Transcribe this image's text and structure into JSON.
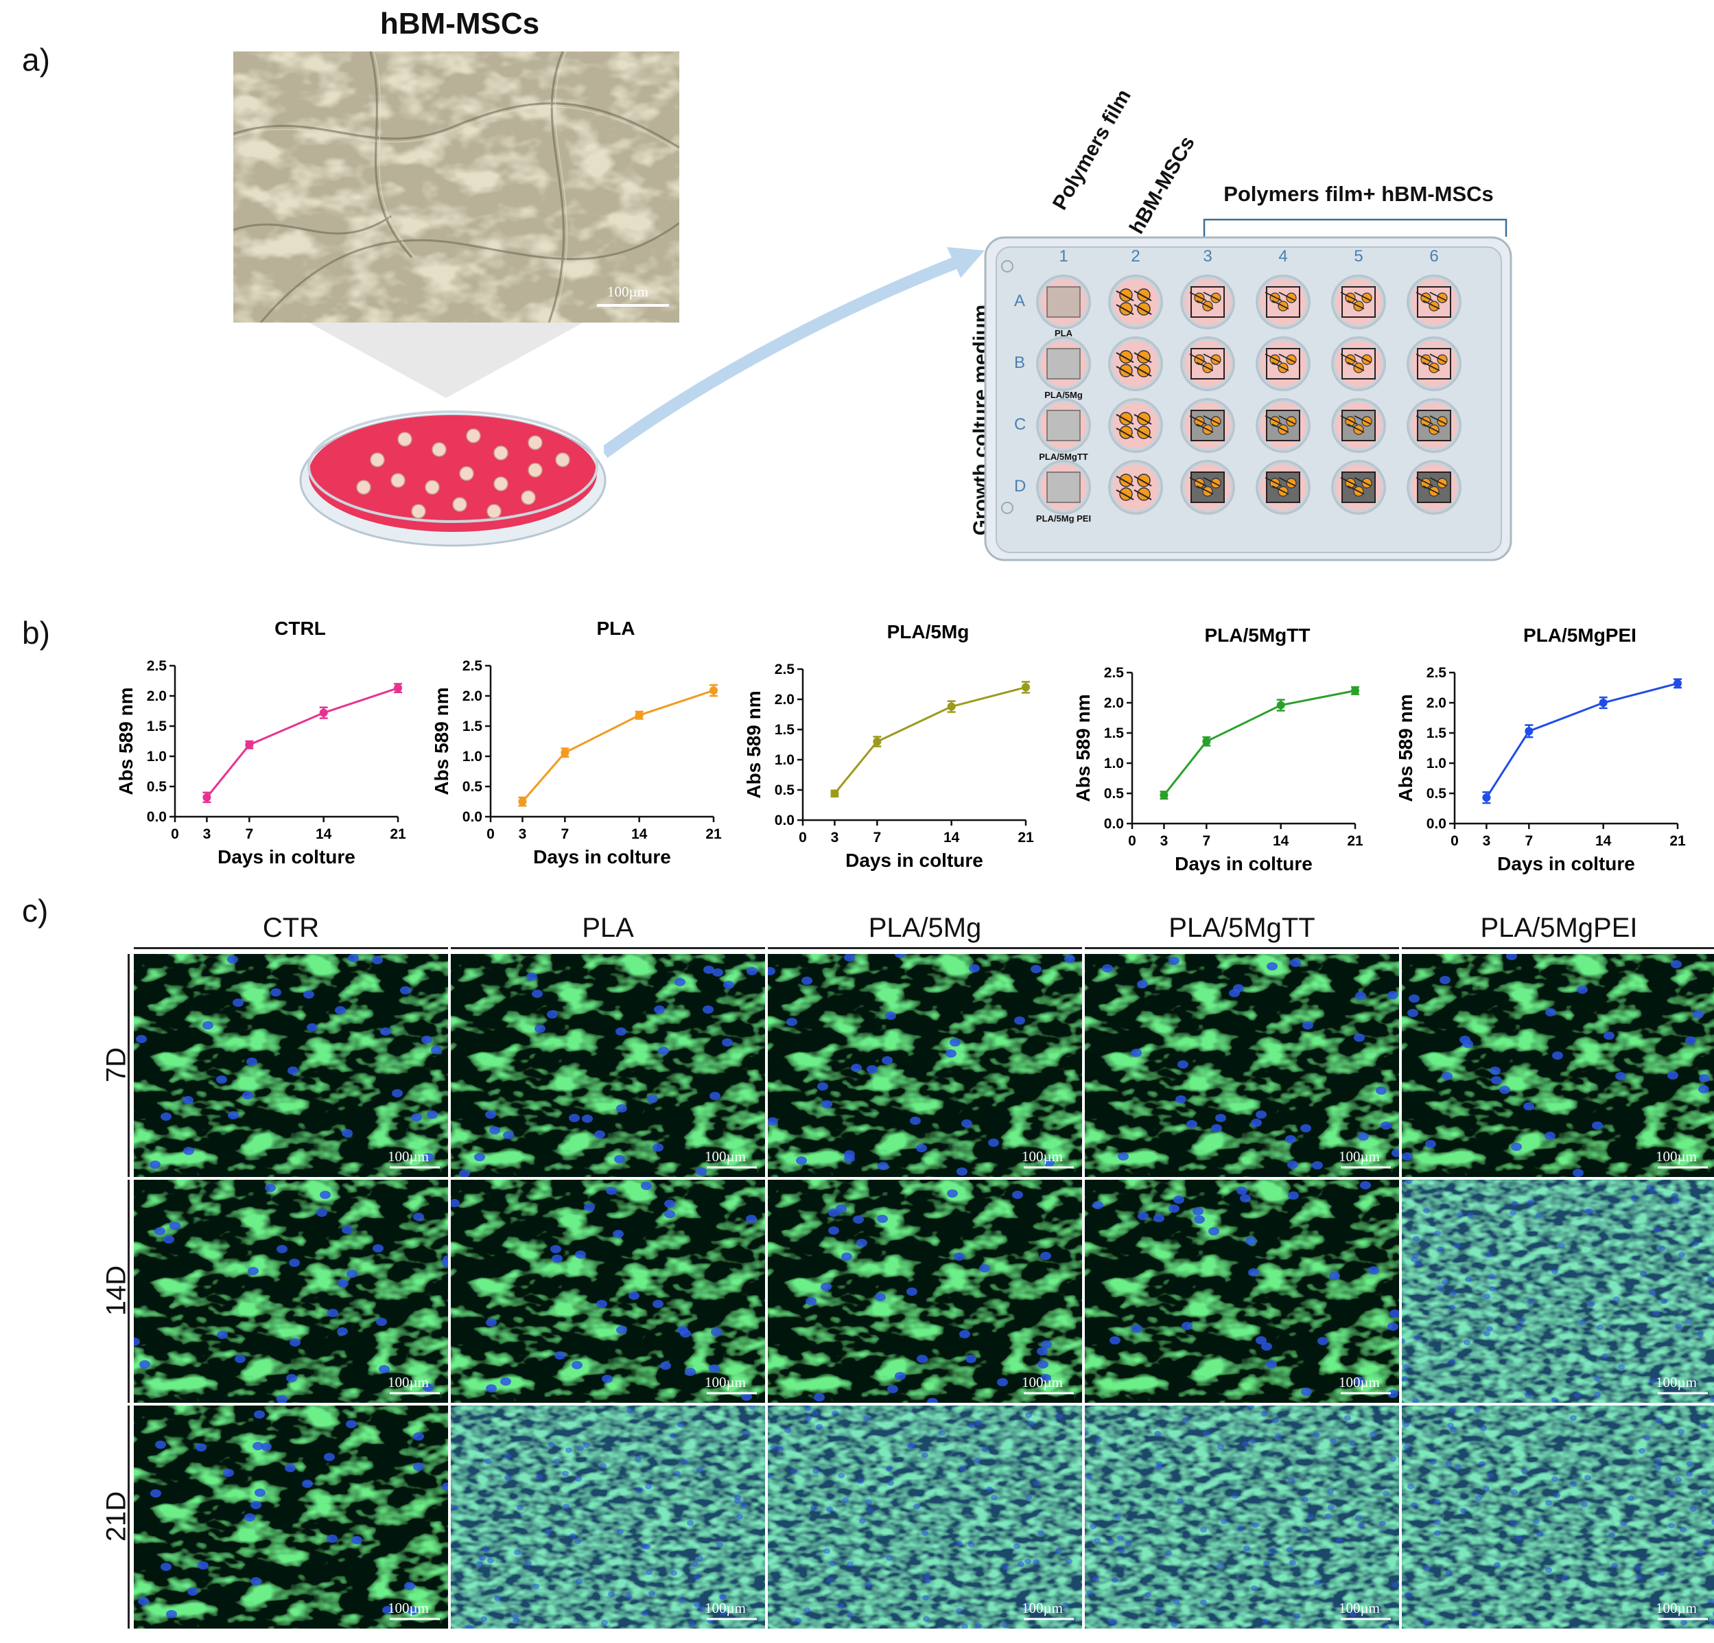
{
  "panel_a": {
    "letter": "a)",
    "micrograph_title": "hBM-MSCs",
    "scale_bar": "100µm",
    "plate": {
      "label_col1": "Polymers film",
      "label_col2": "hBM-MSCs",
      "label_group": "Polymers film+ hBM-MSCs",
      "side_label": "Growth colture medium",
      "columns": [
        "1",
        "2",
        "3",
        "4",
        "5",
        "6"
      ],
      "rows": [
        "A",
        "B",
        "C",
        "D"
      ],
      "film_labels": [
        "PLA",
        "PLA/5Mg",
        "PLA/5MgTT",
        "PLA/5Mg PEI"
      ]
    }
  },
  "panel_b": {
    "letter": "b)",
    "colors": [
      "#e8328f",
      "#f39a1f",
      "#9c9a1c",
      "#2aa02a",
      "#1f4de8"
    ]
  },
  "chart_data": [
    {
      "type": "line",
      "title": "CTRL",
      "xlabel": "Days in colture",
      "ylabel": "Abs 589 nm",
      "x": [
        3,
        7,
        14,
        21
      ],
      "values": [
        0.32,
        1.19,
        1.72,
        2.13
      ],
      "errors": [
        0.08,
        0.06,
        0.09,
        0.07
      ],
      "xticks": [
        "0",
        "3",
        "7",
        "14",
        "21"
      ],
      "yticks": [
        "0.0",
        "0.5",
        "1.0",
        "1.5",
        "2.0",
        "2.5"
      ],
      "xlim": [
        0,
        21
      ],
      "ylim": [
        0,
        2.5
      ],
      "color": "#e8328f"
    },
    {
      "type": "line",
      "title": "PLA",
      "xlabel": "Days in colture",
      "ylabel": "Abs 589 nm",
      "x": [
        3,
        7,
        14,
        21
      ],
      "values": [
        0.25,
        1.06,
        1.68,
        2.09
      ],
      "errors": [
        0.07,
        0.07,
        0.06,
        0.09
      ],
      "xticks": [
        "0",
        "3",
        "7",
        "14",
        "21"
      ],
      "yticks": [
        "0.0",
        "0.5",
        "1.0",
        "1.5",
        "2.0",
        "2.5"
      ],
      "xlim": [
        0,
        21
      ],
      "ylim": [
        0,
        2.5
      ],
      "color": "#f39a1f"
    },
    {
      "type": "line",
      "title": "PLA/5Mg",
      "xlabel": "Days in colture",
      "ylabel": "Abs 589 nm",
      "x": [
        3,
        7,
        14,
        21
      ],
      "values": [
        0.44,
        1.3,
        1.88,
        2.2
      ],
      "errors": [
        0.05,
        0.08,
        0.09,
        0.09
      ],
      "xticks": [
        "0",
        "3",
        "7",
        "14",
        "21"
      ],
      "yticks": [
        "0.0",
        "0.5",
        "1.0",
        "1.5",
        "2.0",
        "2.5"
      ],
      "xlim": [
        0,
        21
      ],
      "ylim": [
        0,
        2.5
      ],
      "color": "#9c9a1c"
    },
    {
      "type": "line",
      "title": "PLA/5MgTT",
      "xlabel": "Days in colture",
      "ylabel": "Abs 589 nm",
      "x": [
        3,
        7,
        14,
        21
      ],
      "values": [
        0.47,
        1.36,
        1.96,
        2.2
      ],
      "errors": [
        0.06,
        0.07,
        0.09,
        0.06
      ],
      "xticks": [
        "0",
        "3",
        "7",
        "14",
        "21"
      ],
      "yticks": [
        "0.0",
        "0.5",
        "1.0",
        "1.5",
        "2.0",
        "2.5"
      ],
      "xlim": [
        0,
        21
      ],
      "ylim": [
        0,
        2.5
      ],
      "color": "#2aa02a"
    },
    {
      "type": "line",
      "title": "PLA/5MgPEI",
      "xlabel": "Days in colture",
      "ylabel": "Abs 589 nm",
      "x": [
        3,
        7,
        14,
        21
      ],
      "values": [
        0.43,
        1.53,
        2.0,
        2.32
      ],
      "errors": [
        0.09,
        0.1,
        0.09,
        0.07
      ],
      "xticks": [
        "0",
        "3",
        "7",
        "14",
        "21"
      ],
      "yticks": [
        "0.0",
        "0.5",
        "1.0",
        "1.5",
        "2.0",
        "2.5"
      ],
      "xlim": [
        0,
        21
      ],
      "ylim": [
        0,
        2.5
      ],
      "color": "#1f4de8"
    }
  ],
  "panel_c": {
    "letter": "c)",
    "columns": [
      "CTR",
      "PLA",
      "PLA/5Mg",
      "PLA/5MgTT",
      "PLA/5MgPEI"
    ],
    "rows": [
      "7D",
      "14D",
      "21D"
    ],
    "scale_bar": "100µm"
  }
}
